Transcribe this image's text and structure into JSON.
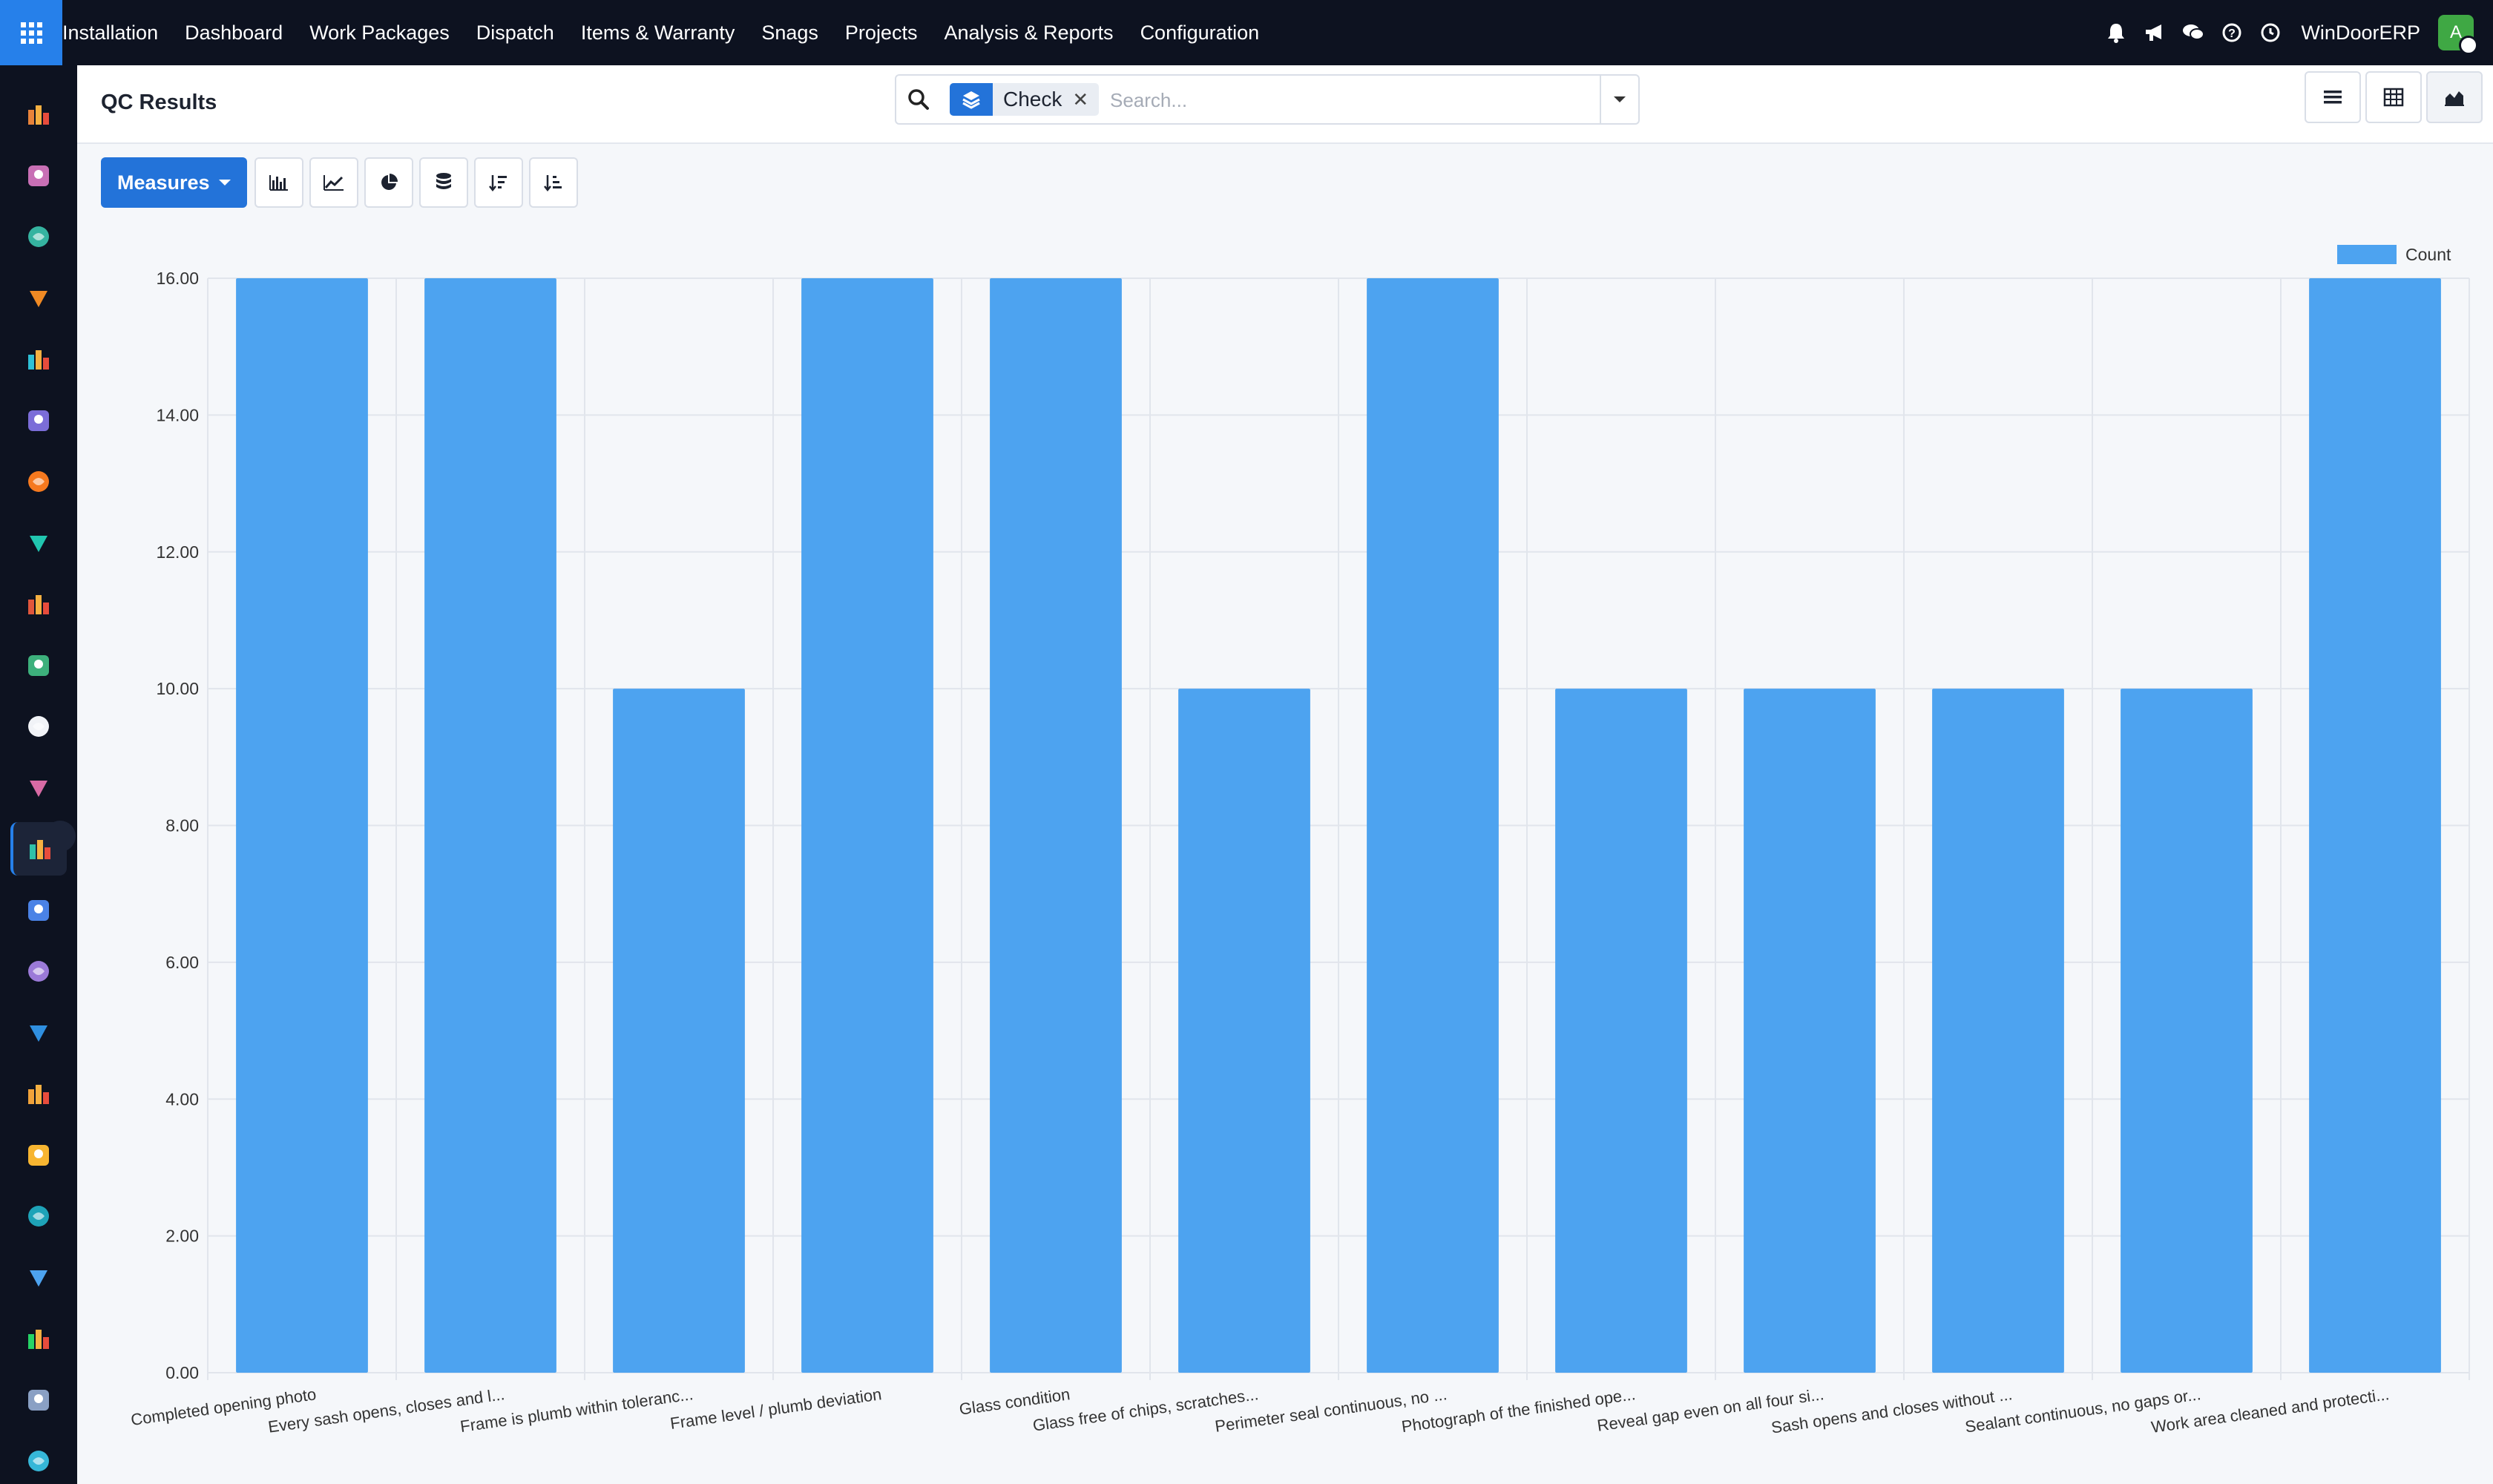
{
  "topbar": {
    "menu": [
      "Installation",
      "Dashboard",
      "Work Packages",
      "Dispatch",
      "Items & Warranty",
      "Snags",
      "Projects",
      "Analysis & Reports",
      "Configuration"
    ],
    "company": "WinDoorERP",
    "avatar_letter": "A",
    "icons": [
      "bell-icon",
      "megaphone-icon",
      "chat-icon",
      "help-icon",
      "clock-icon"
    ]
  },
  "page": {
    "title": "QC Results"
  },
  "search": {
    "facet_label": "Check",
    "placeholder": "Search..."
  },
  "toolbar": {
    "measures_label": "Measures"
  },
  "sidebar": {
    "icons": [
      "sales-app-icon",
      "planning-app-icon",
      "contacts-app-icon",
      "discuss-app-icon",
      "website-app-icon",
      "mail-app-icon",
      "livechat-app-icon",
      "quality-app-icon",
      "dashboard-app-icon",
      "employees-app-icon",
      "inventory-app-icon",
      "documents-app-icon",
      "qc-results-app-icon",
      "knowledge-app-icon",
      "products-app-icon",
      "expenses-app-icon",
      "team-app-icon",
      "calendar-app-icon",
      "sign-app-icon",
      "apps-app-icon",
      "whatsapp-app-icon",
      "timer-app-icon",
      "spreadsheet-app-icon"
    ]
  },
  "colors": {
    "bar": "#4da3f0",
    "primary": "#2373d9",
    "topbar": "#0d1220"
  },
  "chart_data": {
    "type": "bar",
    "categories": [
      "Completed opening photo",
      "Every sash opens, closes and l...",
      "Frame is plumb within toleranc...",
      "Frame level / plumb deviation",
      "Glass condition",
      "Glass free of chips, scratches...",
      "Perimeter seal continuous, no ...",
      "Photograph of the finished ope...",
      "Reveal gap even on all four si...",
      "Sash opens and closes without ...",
      "Sealant continuous, no gaps or...",
      "Work area cleaned and protecti..."
    ],
    "series": [
      {
        "name": "Count",
        "values": [
          16,
          16,
          10,
          16,
          16,
          10,
          16,
          10,
          10,
          10,
          10,
          16
        ]
      }
    ],
    "y_ticks": [
      "0.00",
      "2.00",
      "4.00",
      "6.00",
      "8.00",
      "10.00",
      "12.00",
      "14.00",
      "16.00"
    ],
    "ylim": [
      0,
      16
    ],
    "grid": true,
    "legend": "top-right"
  }
}
